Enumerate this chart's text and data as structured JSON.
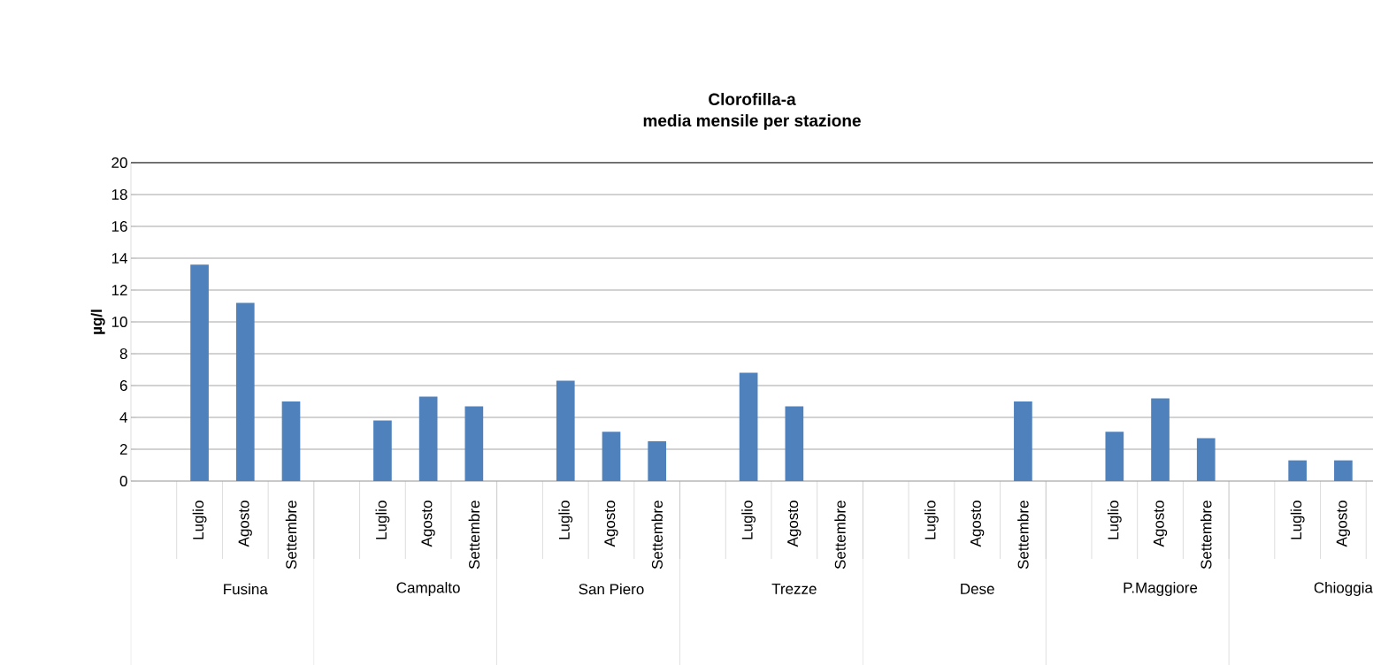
{
  "chart_data": {
    "type": "bar",
    "title": "Clorofilla-a",
    "subtitle": "media mensile per stazione",
    "ylabel": "µg/l",
    "categories": [
      "Luglio",
      "Agosto",
      "Settembre",
      "Luglio",
      "Agosto",
      "Settembre",
      "Luglio",
      "Agosto",
      "Settembre",
      "Luglio",
      "Agosto",
      "Settembre",
      "Luglio",
      "Agosto",
      "Settembre",
      "Luglio",
      "Agosto",
      "Settembre",
      "Luglio",
      "Agosto"
    ],
    "values": [
      13.6,
      11.2,
      5.0,
      3.8,
      5.3,
      4.7,
      6.3,
      3.1,
      2.5,
      6.8,
      4.7,
      null,
      null,
      null,
      5.0,
      3.1,
      5.2,
      2.7,
      1.3,
      1.3
    ],
    "color": "#4f81bd",
    "ylim": [
      0,
      20
    ],
    "yticks": [
      0,
      2,
      4,
      6,
      8,
      10,
      12,
      14,
      16,
      18,
      20
    ],
    "grid": "y",
    "annotations": [
      "Fusina",
      "Campalto",
      "San Piero",
      "Trezze",
      "Dese",
      "P.Maggiore",
      "Chioggia"
    ]
  }
}
